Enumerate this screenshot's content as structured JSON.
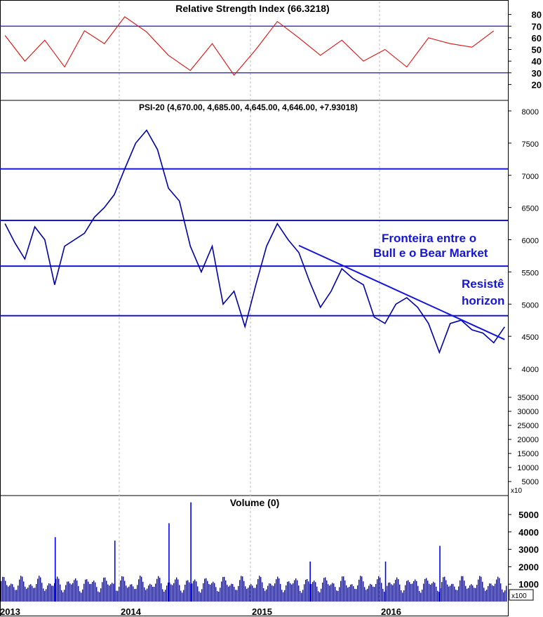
{
  "chart_data": [
    {
      "type": "line",
      "title": "Relative Strength Index (66.3218)",
      "ylim": [
        10,
        90
      ],
      "yticks": [
        20,
        30,
        40,
        50,
        60,
        70,
        80
      ],
      "reference_lines": [
        30,
        70
      ],
      "grid": "vertical dotted at year boundaries",
      "series": [
        {
          "color": "#dd1111",
          "x": [
            "2013-01",
            "2013-03",
            "2013-05",
            "2013-07",
            "2013-09",
            "2013-11",
            "2014-01",
            "2014-03",
            "2014-05",
            "2014-07",
            "2014-09",
            "2014-11",
            "2015-01",
            "2015-03",
            "2015-05",
            "2015-07",
            "2015-09",
            "2015-11",
            "2016-01",
            "2016-03",
            "2016-05",
            "2016-07",
            "2016-09",
            "2016-11"
          ],
          "values": [
            62,
            40,
            58,
            35,
            66,
            55,
            78,
            65,
            45,
            32,
            55,
            28,
            50,
            74,
            60,
            45,
            58,
            40,
            50,
            35,
            60,
            55,
            52,
            66
          ]
        }
      ]
    },
    {
      "type": "line",
      "title": "PSI-20 (4,670.00, 4,685.00, 4,645.00, 4,646.00, +7.93018)",
      "ylim": [
        3900,
        8200
      ],
      "yticks": [
        4000,
        4500,
        5000,
        5500,
        6000,
        6500,
        7000,
        7500,
        8000
      ],
      "horizontal_levels": [
        7100,
        6300,
        5590,
        4820
      ],
      "trendline": {
        "from": [
          "2015-05",
          5910
        ],
        "to": [
          "2016-12",
          4450
        ]
      },
      "secondary_axis": {
        "unit": "x10",
        "ticks": [
          5000,
          10000,
          15000,
          20000,
          25000,
          30000,
          35000
        ]
      },
      "annotations": [
        {
          "text": "Fronteira entre o",
          "color": "#1515d8"
        },
        {
          "text": "Bull e o Bear Market",
          "color": "#1515d8"
        },
        {
          "text": "Resistê",
          "color": "#1515d8"
        },
        {
          "text": "horizon",
          "color": "#1515d8"
        }
      ],
      "series": [
        {
          "color": "#0000aa",
          "x": [
            "2013-01",
            "2013-02",
            "2013-03",
            "2013-04",
            "2013-05",
            "2013-06",
            "2013-07",
            "2013-08",
            "2013-09",
            "2013-10",
            "2013-11",
            "2013-12",
            "2014-01",
            "2014-02",
            "2014-03",
            "2014-04",
            "2014-05",
            "2014-06",
            "2014-07",
            "2014-08",
            "2014-09",
            "2014-10",
            "2014-11",
            "2014-12",
            "2015-01",
            "2015-02",
            "2015-03",
            "2015-04",
            "2015-05",
            "2015-06",
            "2015-07",
            "2015-08",
            "2015-09",
            "2015-10",
            "2015-11",
            "2015-12",
            "2016-01",
            "2016-02",
            "2016-03",
            "2016-04",
            "2016-05",
            "2016-06",
            "2016-07",
            "2016-08",
            "2016-09",
            "2016-10",
            "2016-11",
            "2016-12"
          ],
          "values": [
            6250,
            5950,
            5700,
            6200,
            6000,
            5300,
            5900,
            6000,
            6100,
            6350,
            6500,
            6700,
            7100,
            7500,
            7700,
            7400,
            6800,
            6600,
            5900,
            5500,
            5900,
            5000,
            5200,
            4650,
            5300,
            5900,
            6250,
            6000,
            5800,
            5350,
            4950,
            5200,
            5550,
            5400,
            5300,
            4800,
            4700,
            5000,
            5100,
            4950,
            4700,
            4250,
            4700,
            4750,
            4600,
            4550,
            4400,
            4646
          ]
        }
      ]
    },
    {
      "type": "bar",
      "title": "Volume (0)",
      "ylim": [
        0,
        5800
      ],
      "yticks": [
        1000,
        2000,
        3000,
        4000,
        5000
      ],
      "unit": "x100",
      "color": "#0000ff",
      "x_labels": [
        "2013",
        "2014",
        "2015",
        "2016"
      ],
      "spikes": [
        {
          "x": "2013-06",
          "value": 3700
        },
        {
          "x": "2013-12",
          "value": 3500
        },
        {
          "x": "2014-05",
          "value": 4500
        },
        {
          "x": "2014-07",
          "value": 5700
        },
        {
          "x": "2015-06",
          "value": 2300
        },
        {
          "x": "2016-01",
          "value": 2300
        },
        {
          "x": "2016-06",
          "value": 3200
        }
      ],
      "typical_range": [
        500,
        1500
      ]
    }
  ]
}
